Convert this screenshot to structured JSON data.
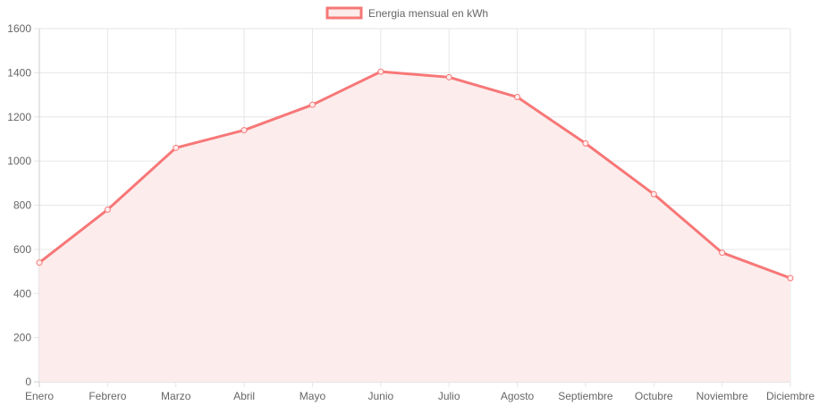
{
  "chart_data": {
    "type": "area",
    "categories": [
      "Enero",
      "Febrero",
      "Marzo",
      "Abril",
      "Mayo",
      "Junio",
      "Julio",
      "Agosto",
      "Septiembre",
      "Octubre",
      "Noviembre",
      "Diciembre"
    ],
    "series": [
      {
        "name": "Energia mensual en kWh",
        "values": [
          540,
          780,
          1060,
          1140,
          1255,
          1405,
          1380,
          1290,
          1080,
          850,
          585,
          470
        ]
      }
    ],
    "title": "",
    "xlabel": "",
    "ylabel": "",
    "ylim": [
      0,
      1600
    ],
    "yticks": [
      0,
      200,
      400,
      600,
      800,
      1000,
      1200,
      1400,
      1600
    ],
    "grid": true,
    "legend_position": "top-center",
    "colors": {
      "line": "#f77777",
      "fill": "#fdecec",
      "grid": "#e6e6e6",
      "axis": "#cccccc",
      "text": "#666666"
    }
  }
}
